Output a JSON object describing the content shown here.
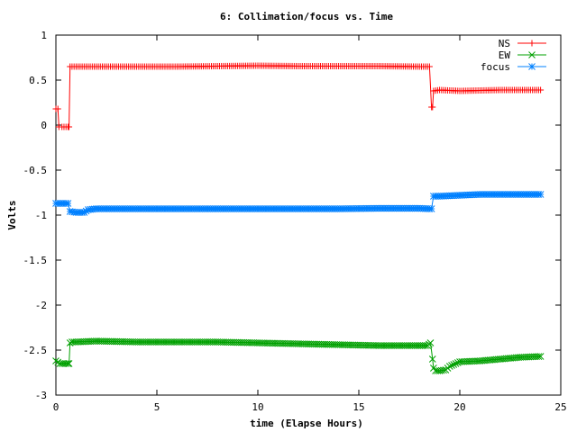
{
  "chart_data": {
    "type": "line",
    "title": "6: Collimation/focus vs. Time",
    "xlabel": "time (Elapse Hours)",
    "ylabel": "Volts",
    "xlim": [
      0,
      25
    ],
    "ylim": [
      -3,
      1
    ],
    "xticks": [
      0,
      5,
      10,
      15,
      20,
      25
    ],
    "yticks": [
      1,
      0.5,
      0,
      -0.5,
      -1,
      -1.5,
      -2,
      -2.5,
      -3
    ],
    "xtick_labels": [
      "0",
      "5",
      "10",
      "15",
      "20",
      "25"
    ],
    "ytick_labels": [
      "1",
      "0.5",
      "0",
      "-0.5",
      "-1",
      "-1.5",
      "-2",
      "-2.5",
      "-3"
    ],
    "grid": false,
    "legend_position": "top-right",
    "series": [
      {
        "name": "NS",
        "color": "#ff0000",
        "marker": "plus",
        "points": [
          [
            0.0,
            0.18
          ],
          [
            0.1,
            0.18
          ],
          [
            0.15,
            -0.02
          ],
          [
            0.3,
            -0.02
          ],
          [
            0.6,
            -0.02
          ],
          [
            0.65,
            -0.02
          ],
          [
            0.7,
            0.65
          ],
          [
            2,
            0.65
          ],
          [
            4,
            0.65
          ],
          [
            6,
            0.65
          ],
          [
            8,
            0.655
          ],
          [
            10,
            0.66
          ],
          [
            12,
            0.655
          ],
          [
            14,
            0.655
          ],
          [
            16,
            0.655
          ],
          [
            18,
            0.65
          ],
          [
            18.5,
            0.65
          ],
          [
            18.6,
            0.2
          ],
          [
            18.65,
            0.2
          ],
          [
            18.7,
            0.38
          ],
          [
            19,
            0.39
          ],
          [
            20,
            0.38
          ],
          [
            22,
            0.39
          ],
          [
            24,
            0.39
          ]
        ]
      },
      {
        "name": "EW",
        "color": "#00a000",
        "marker": "x",
        "points": [
          [
            0.0,
            -2.62
          ],
          [
            0.2,
            -2.65
          ],
          [
            0.4,
            -2.65
          ],
          [
            0.6,
            -2.65
          ],
          [
            0.65,
            -2.65
          ],
          [
            0.7,
            -2.42
          ],
          [
            0.8,
            -2.41
          ],
          [
            1,
            -2.41
          ],
          [
            2,
            -2.4
          ],
          [
            4,
            -2.41
          ],
          [
            6,
            -2.41
          ],
          [
            8,
            -2.41
          ],
          [
            10,
            -2.42
          ],
          [
            12,
            -2.43
          ],
          [
            14,
            -2.44
          ],
          [
            16,
            -2.45
          ],
          [
            18,
            -2.45
          ],
          [
            18.4,
            -2.45
          ],
          [
            18.55,
            -2.42
          ],
          [
            18.65,
            -2.6
          ],
          [
            18.7,
            -2.7
          ],
          [
            18.8,
            -2.73
          ],
          [
            19,
            -2.73
          ],
          [
            19.3,
            -2.72
          ],
          [
            19.5,
            -2.68
          ],
          [
            20,
            -2.63
          ],
          [
            21,
            -2.62
          ],
          [
            22,
            -2.6
          ],
          [
            23,
            -2.58
          ],
          [
            24,
            -2.57
          ]
        ]
      },
      {
        "name": "focus",
        "color": "#0080ff",
        "marker": "star",
        "points": [
          [
            0.0,
            -0.87
          ],
          [
            0.3,
            -0.87
          ],
          [
            0.6,
            -0.87
          ],
          [
            0.7,
            -0.96
          ],
          [
            1.0,
            -0.97
          ],
          [
            1.4,
            -0.97
          ],
          [
            1.6,
            -0.94
          ],
          [
            2,
            -0.93
          ],
          [
            4,
            -0.93
          ],
          [
            6,
            -0.93
          ],
          [
            8,
            -0.93
          ],
          [
            10,
            -0.93
          ],
          [
            12,
            -0.93
          ],
          [
            14,
            -0.93
          ],
          [
            16,
            -0.925
          ],
          [
            18,
            -0.925
          ],
          [
            18.5,
            -0.93
          ],
          [
            18.6,
            -0.93
          ],
          [
            18.7,
            -0.79
          ],
          [
            19,
            -0.79
          ],
          [
            20,
            -0.78
          ],
          [
            21,
            -0.77
          ],
          [
            22,
            -0.77
          ],
          [
            24,
            -0.77
          ]
        ]
      }
    ]
  }
}
